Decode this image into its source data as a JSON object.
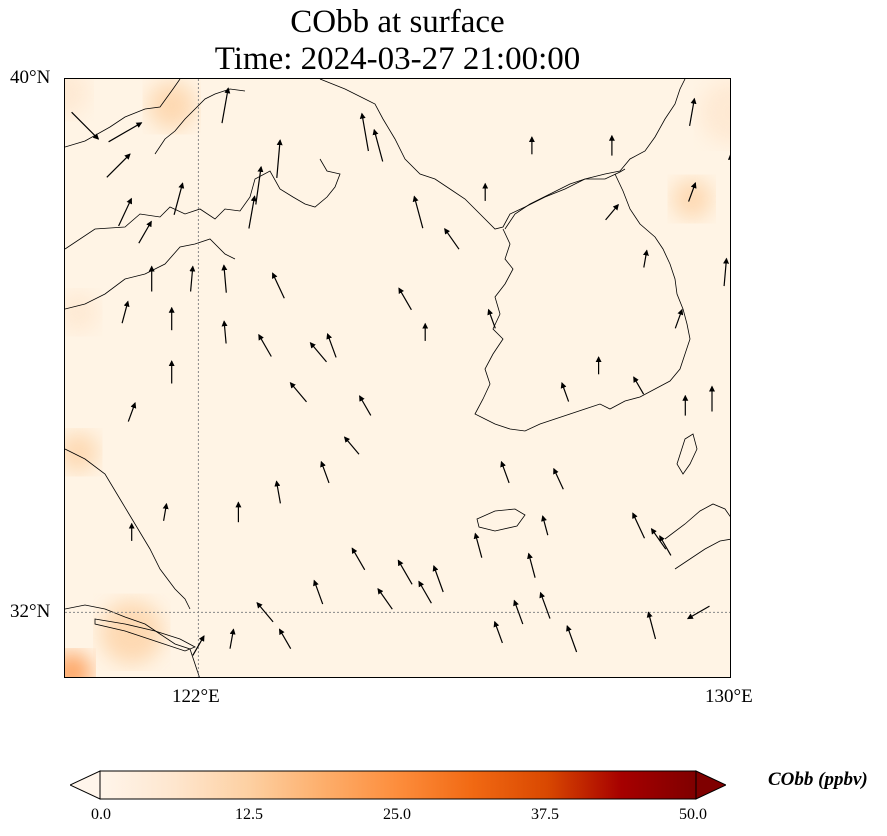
{
  "title": {
    "line1": "CObb at surface",
    "line2": "Time: 2024-03-27 21:00:00"
  },
  "axes": {
    "lat_labels": [
      "40°N",
      "32°N"
    ],
    "lon_labels": [
      "122°E",
      "130°E"
    ],
    "lat_range": [
      31.0,
      40.0
    ],
    "lon_range": [
      120.0,
      130.0
    ],
    "gridlines": [
      {
        "type": "lon",
        "value": 122.0
      },
      {
        "type": "lat",
        "value": 32.0
      }
    ]
  },
  "colorbar": {
    "label": "CObb (ppbv)",
    "ticks": [
      "0.0",
      "12.5",
      "25.0",
      "37.5",
      "50.0"
    ],
    "min": 0.0,
    "max": 50.0,
    "extend": "both",
    "colormap_stops": [
      "#fff5eb",
      "#fee6ce",
      "#fdd0a2",
      "#fdae6b",
      "#fd8d3c",
      "#f16913",
      "#d94801",
      "#a60000",
      "#7f0000"
    ]
  },
  "colors": {
    "background_field": "#fff4e5",
    "coast": "#000000",
    "gridline": "#888888"
  },
  "wind_vectors": [
    {
      "lon": 120.3,
      "lat": 39.3,
      "dir": 135,
      "len": 1.0
    },
    {
      "lon": 120.9,
      "lat": 39.2,
      "dir": 60,
      "len": 1.0
    },
    {
      "lon": 120.8,
      "lat": 38.7,
      "dir": 45,
      "len": 0.8
    },
    {
      "lon": 120.9,
      "lat": 38.0,
      "dir": 25,
      "len": 0.7
    },
    {
      "lon": 121.2,
      "lat": 37.7,
      "dir": 30,
      "len": 0.5
    },
    {
      "lon": 121.7,
      "lat": 38.2,
      "dir": 15,
      "len": 0.8
    },
    {
      "lon": 122.4,
      "lat": 39.6,
      "dir": 10,
      "len": 0.9
    },
    {
      "lon": 122.9,
      "lat": 38.4,
      "dir": 8,
      "len": 1.0
    },
    {
      "lon": 123.2,
      "lat": 38.8,
      "dir": 5,
      "len": 1.0
    },
    {
      "lon": 122.8,
      "lat": 38.0,
      "dir": 10,
      "len": 0.8
    },
    {
      "lon": 124.5,
      "lat": 39.2,
      "dir": -10,
      "len": 1.0
    },
    {
      "lon": 124.7,
      "lat": 39.0,
      "dir": -15,
      "len": 0.8
    },
    {
      "lon": 125.3,
      "lat": 38.0,
      "dir": -15,
      "len": 0.8
    },
    {
      "lon": 121.3,
      "lat": 37.0,
      "dir": 0,
      "len": 0.5
    },
    {
      "lon": 121.9,
      "lat": 37.0,
      "dir": 5,
      "len": 0.5
    },
    {
      "lon": 122.4,
      "lat": 37.0,
      "dir": -5,
      "len": 0.6
    },
    {
      "lon": 123.2,
      "lat": 36.9,
      "dir": -25,
      "len": 0.6
    },
    {
      "lon": 120.9,
      "lat": 36.5,
      "dir": 15,
      "len": 0.4
    },
    {
      "lon": 121.6,
      "lat": 36.4,
      "dir": 0,
      "len": 0.4
    },
    {
      "lon": 122.4,
      "lat": 36.2,
      "dir": -5,
      "len": 0.4
    },
    {
      "lon": 123.0,
      "lat": 36.0,
      "dir": -30,
      "len": 0.5
    },
    {
      "lon": 123.8,
      "lat": 35.9,
      "dir": -40,
      "len": 0.5
    },
    {
      "lon": 124.0,
      "lat": 36.0,
      "dir": -20,
      "len": 0.5
    },
    {
      "lon": 125.1,
      "lat": 36.7,
      "dir": -30,
      "len": 0.5
    },
    {
      "lon": 125.8,
      "lat": 37.6,
      "dir": -35,
      "len": 0.5
    },
    {
      "lon": 121.6,
      "lat": 35.6,
      "dir": 0,
      "len": 0.4
    },
    {
      "lon": 121.0,
      "lat": 35.0,
      "dir": 20,
      "len": 0.3
    },
    {
      "lon": 123.5,
      "lat": 35.3,
      "dir": -40,
      "len": 0.5
    },
    {
      "lon": 124.5,
      "lat": 35.1,
      "dir": -30,
      "len": 0.4
    },
    {
      "lon": 124.3,
      "lat": 34.5,
      "dir": -40,
      "len": 0.4
    },
    {
      "lon": 123.9,
      "lat": 34.1,
      "dir": -20,
      "len": 0.4
    },
    {
      "lon": 123.2,
      "lat": 33.8,
      "dir": -10,
      "len": 0.4
    },
    {
      "lon": 122.6,
      "lat": 33.5,
      "dir": 0,
      "len": 0.3
    },
    {
      "lon": 121.0,
      "lat": 33.2,
      "dir": 0,
      "len": 0.2
    },
    {
      "lon": 121.5,
      "lat": 33.5,
      "dir": 10,
      "len": 0.2
    },
    {
      "lon": 124.4,
      "lat": 32.8,
      "dir": -30,
      "len": 0.5
    },
    {
      "lon": 125.1,
      "lat": 32.6,
      "dir": -30,
      "len": 0.6
    },
    {
      "lon": 125.6,
      "lat": 32.5,
      "dir": -20,
      "len": 0.6
    },
    {
      "lon": 125.4,
      "lat": 32.3,
      "dir": -30,
      "len": 0.5
    },
    {
      "lon": 124.8,
      "lat": 32.2,
      "dir": -35,
      "len": 0.5
    },
    {
      "lon": 123.8,
      "lat": 32.3,
      "dir": -20,
      "len": 0.5
    },
    {
      "lon": 123.0,
      "lat": 32.0,
      "dir": -40,
      "len": 0.5
    },
    {
      "lon": 122.0,
      "lat": 31.5,
      "dir": 30,
      "len": 0.4
    },
    {
      "lon": 122.5,
      "lat": 31.6,
      "dir": 10,
      "len": 0.3
    },
    {
      "lon": 123.3,
      "lat": 31.6,
      "dir": -30,
      "len": 0.4
    },
    {
      "lon": 126.5,
      "lat": 31.7,
      "dir": -20,
      "len": 0.4
    },
    {
      "lon": 126.8,
      "lat": 32.0,
      "dir": -20,
      "len": 0.5
    },
    {
      "lon": 127.2,
      "lat": 32.1,
      "dir": -20,
      "len": 0.6
    },
    {
      "lon": 127.6,
      "lat": 31.6,
      "dir": -20,
      "len": 0.6
    },
    {
      "lon": 128.8,
      "lat": 31.8,
      "dir": -15,
      "len": 0.6
    },
    {
      "lon": 129.5,
      "lat": 32.0,
      "dir": 240,
      "len": 0.5
    },
    {
      "lon": 126.2,
      "lat": 33.0,
      "dir": -15,
      "len": 0.5
    },
    {
      "lon": 127.0,
      "lat": 32.7,
      "dir": -15,
      "len": 0.5
    },
    {
      "lon": 127.2,
      "lat": 33.3,
      "dir": -15,
      "len": 0.3
    },
    {
      "lon": 128.6,
      "lat": 33.3,
      "dir": -25,
      "len": 0.6
    },
    {
      "lon": 128.9,
      "lat": 33.1,
      "dir": -35,
      "len": 0.5
    },
    {
      "lon": 129.0,
      "lat": 33.0,
      "dir": -30,
      "len": 0.4
    },
    {
      "lon": 126.6,
      "lat": 34.1,
      "dir": -20,
      "len": 0.4
    },
    {
      "lon": 127.4,
      "lat": 34.0,
      "dir": -25,
      "len": 0.4
    },
    {
      "lon": 127.5,
      "lat": 35.3,
      "dir": -20,
      "len": 0.3
    },
    {
      "lon": 128.0,
      "lat": 35.7,
      "dir": 0,
      "len": 0.2
    },
    {
      "lon": 128.6,
      "lat": 35.4,
      "dir": -30,
      "len": 0.3
    },
    {
      "lon": 129.3,
      "lat": 35.1,
      "dir": 0,
      "len": 0.3
    },
    {
      "lon": 129.7,
      "lat": 35.2,
      "dir": 0,
      "len": 0.5
    },
    {
      "lon": 129.2,
      "lat": 36.4,
      "dir": 20,
      "len": 0.3
    },
    {
      "lon": 128.2,
      "lat": 38.0,
      "dir": 40,
      "len": 0.3
    },
    {
      "lon": 128.7,
      "lat": 37.3,
      "dir": 10,
      "len": 0.2
    },
    {
      "lon": 129.4,
      "lat": 38.3,
      "dir": 20,
      "len": 0.3
    },
    {
      "lon": 129.9,
      "lat": 37.1,
      "dir": 5,
      "len": 0.6
    },
    {
      "lon": 130.0,
      "lat": 38.6,
      "dir": -5,
      "len": 0.9
    },
    {
      "lon": 129.4,
      "lat": 39.5,
      "dir": 10,
      "len": 0.6
    },
    {
      "lon": 128.2,
      "lat": 39.0,
      "dir": 0,
      "len": 0.3
    },
    {
      "lon": 127.0,
      "lat": 39.0,
      "dir": 0,
      "len": 0.2
    },
    {
      "lon": 126.3,
      "lat": 38.3,
      "dir": 0,
      "len": 0.2
    },
    {
      "lon": 126.4,
      "lat": 36.4,
      "dir": -20,
      "len": 0.3
    },
    {
      "lon": 125.4,
      "lat": 36.2,
      "dir": 0,
      "len": 0.2
    }
  ],
  "concentration_patches": [
    {
      "lon": 121.6,
      "lat": 39.6,
      "radius_deg": 0.6,
      "value": 6
    },
    {
      "lon": 120.2,
      "lat": 34.4,
      "radius_deg": 0.5,
      "value": 6
    },
    {
      "lon": 120.2,
      "lat": 36.5,
      "radius_deg": 0.5,
      "value": 5
    },
    {
      "lon": 121.0,
      "lat": 31.7,
      "radius_deg": 0.8,
      "value": 8
    },
    {
      "lon": 120.1,
      "lat": 31.1,
      "radius_deg": 0.5,
      "value": 14
    },
    {
      "lon": 129.4,
      "lat": 38.2,
      "radius_deg": 0.5,
      "value": 6
    },
    {
      "lon": 130.0,
      "lat": 39.5,
      "radius_deg": 0.8,
      "value": 4
    },
    {
      "lon": 120.0,
      "lat": 39.8,
      "radius_deg": 0.6,
      "value": 3
    }
  ]
}
